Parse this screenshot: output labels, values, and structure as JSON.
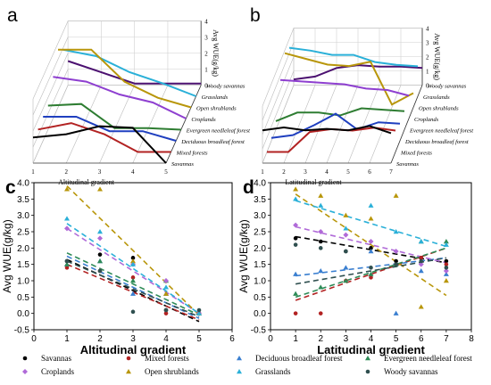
{
  "colors": {
    "Savannas": "#000000",
    "Mixed forests": "#b22222",
    "Deciduous broadleaf forest": "#1f3fbf",
    "Evergreen needleleaf forest": "#2e7d32",
    "Croplands": "#8e3fd0",
    "Open shrublands": "#b8960a",
    "Grasslands": "#2ab0d8",
    "Woody savannas": "#4b1070",
    "scatter_woody": "#2f4f4f",
    "scatter_crop": "#b06ad8",
    "scatter_dbf": "#3a7fd0",
    "scatter_enf": "#2e8b57"
  },
  "panels": {
    "a": "a",
    "b": "b",
    "c": "c",
    "d": "d"
  },
  "legend": {
    "row1": [
      "Savannas",
      "Mixed forests",
      "Deciduous broadleaf forest",
      "Evergreen needleleaf forest"
    ],
    "row2": [
      "Croplands",
      "Open shrublands",
      "Grasslands",
      "Woody savannas"
    ]
  },
  "chart_data": [
    {
      "id": "a",
      "type": "line",
      "note": "3D waterfall line chart",
      "xlabel": "Altitudinal gradient",
      "zlabel": "Avg WUE(g/kg)",
      "x_ticks": [
        "1",
        "2",
        "3",
        "4",
        "5"
      ],
      "z_ticks": [
        "0",
        "1",
        "2",
        "3",
        "4"
      ],
      "series_order": [
        "Savannas",
        "Mixed forests",
        "Deciduous broadleaf forest",
        "Evergreen needleleaf forest",
        "Croplands",
        "Open shrublands",
        "Grasslands",
        "Woody savannas"
      ],
      "x": [
        1,
        2,
        3,
        4,
        5
      ],
      "series": [
        {
          "name": "Savannas",
          "values": [
            1.6,
            1.8,
            2.3,
            2.2,
            0.0
          ]
        },
        {
          "name": "Mixed forests",
          "values": [
            1.4,
            1.8,
            1.1,
            0.0,
            0.0
          ]
        },
        {
          "name": "Deciduous broadleaf forest",
          "values": [
            1.5,
            1.5,
            0.6,
            0.6,
            0.0
          ]
        },
        {
          "name": "Evergreen needleleaf forest",
          "values": [
            1.5,
            1.6,
            0.1,
            0.1,
            0.0
          ]
        },
        {
          "name": "Croplands",
          "values": [
            2.6,
            2.3,
            1.5,
            1.0,
            0.0
          ]
        },
        {
          "name": "Open shrublands",
          "values": [
            3.6,
            3.6,
            1.6,
            0.6,
            0.0
          ]
        },
        {
          "name": "Grasslands",
          "values": [
            2.9,
            2.5,
            1.5,
            0.8,
            0.0
          ]
        },
        {
          "name": "Woody savannas",
          "values": [
            1.5,
            0.8,
            0.1,
            0.1,
            0.1
          ]
        }
      ]
    },
    {
      "id": "b",
      "type": "line",
      "note": "3D waterfall line chart",
      "xlabel": "Latitudinal gradient",
      "zlabel": "Avg WUE(g/kg)",
      "x_ticks": [
        "1",
        "2",
        "3",
        "4",
        "5",
        "6",
        "7"
      ],
      "z_ticks": [
        "0",
        "1",
        "2",
        "3",
        "4"
      ],
      "series_order": [
        "Savannas",
        "Mixed forests",
        "Deciduous broadleaf forest",
        "Evergreen needleleaf forest",
        "Croplands",
        "Open shrublands",
        "Grasslands",
        "Woody savannas"
      ],
      "x": [
        1,
        2,
        3,
        4,
        5,
        6,
        7
      ],
      "series": [
        {
          "name": "Savannas",
          "values": [
            2.3,
            2.5,
            2.3,
            2.4,
            2.3,
            2.6,
            2.1
          ]
        },
        {
          "name": "Mixed forests",
          "values": [
            0.0,
            0.0,
            1.4,
            1.6,
            1.5,
            1.7,
            1.5
          ]
        },
        {
          "name": "Deciduous broadleaf forest",
          "values": [
            0.2,
            0.4,
            1.1,
            1.9,
            0.8,
            1.3,
            1.2
          ]
        },
        {
          "name": "Evergreen needleleaf forest",
          "values": [
            0.6,
            1.2,
            1.2,
            1.0,
            1.5,
            1.4,
            1.3
          ]
        },
        {
          "name": "Croplands",
          "values": [
            2.7,
            2.6,
            2.5,
            2.4,
            2.1,
            2.0,
            1.6
          ]
        },
        {
          "name": "Open shrublands",
          "values": [
            3.8,
            3.4,
            3.0,
            2.9,
            3.2,
            0.2,
            1.0
          ]
        },
        {
          "name": "Grasslands",
          "values": [
            3.4,
            3.2,
            2.9,
            2.9,
            2.4,
            2.2,
            2.1
          ]
        },
        {
          "name": "Woody savannas",
          "values": [
            0.4,
            0.6,
            1.2,
            1.4,
            1.3,
            1.3,
            1.2
          ]
        }
      ]
    },
    {
      "id": "c",
      "type": "scatter",
      "xlabel": "Altitudinal gradient",
      "ylabel": "Avg WUE(g/kg)",
      "xlim": [
        0,
        6
      ],
      "ylim": [
        -0.5,
        4.0
      ],
      "x_ticks": [
        "0",
        "1",
        "2",
        "3",
        "4",
        "5",
        "6"
      ],
      "y_ticks": [
        "-0.5",
        "0.0",
        "0.5",
        "1.0",
        "1.5",
        "2.0",
        "2.5",
        "3.0",
        "3.5",
        "4.0"
      ],
      "series": [
        {
          "name": "Savannas",
          "marker": "circle",
          "points": [
            [
              1,
              1.6
            ],
            [
              2,
              1.8
            ],
            [
              3,
              1.7
            ],
            [
              4,
              0.1
            ],
            [
              5,
              0.0
            ]
          ],
          "trend": [
            [
              1,
              1.65
            ],
            [
              5,
              -0.25
            ]
          ]
        },
        {
          "name": "Mixed forests",
          "marker": "circle",
          "points": [
            [
              1,
              1.4
            ],
            [
              2,
              1.3
            ],
            [
              3,
              1.1
            ],
            [
              4,
              0.0
            ],
            [
              5,
              0.0
            ]
          ],
          "trend": [
            [
              1,
              1.5
            ],
            [
              5,
              -0.2
            ]
          ]
        },
        {
          "name": "Deciduous broadleaf forest",
          "marker": "triangle",
          "points": [
            [
              1,
              1.5
            ],
            [
              2,
              1.6
            ],
            [
              3,
              0.6
            ],
            [
              4,
              0.6
            ],
            [
              5,
              0.0
            ]
          ],
          "trend": [
            [
              1,
              1.75
            ],
            [
              5,
              -0.15
            ]
          ]
        },
        {
          "name": "Evergreen needleleaf forest",
          "marker": "triangle",
          "points": [
            [
              1,
              1.5
            ],
            [
              2,
              1.6
            ],
            [
              3,
              1.0
            ],
            [
              4,
              1.0
            ],
            [
              5,
              0.0
            ]
          ],
          "trend": [
            [
              1,
              1.85
            ],
            [
              5,
              -0.05
            ]
          ]
        },
        {
          "name": "Croplands",
          "marker": "diamond",
          "points": [
            [
              1,
              2.6
            ],
            [
              2,
              2.3
            ],
            [
              3,
              1.5
            ],
            [
              4,
              1.0
            ],
            [
              5,
              0.0
            ]
          ],
          "trend": [
            [
              1,
              2.6
            ],
            [
              5,
              0.0
            ]
          ]
        },
        {
          "name": "Open shrublands",
          "marker": "triangle",
          "points": [
            [
              1,
              3.8
            ],
            [
              2,
              3.8
            ],
            [
              3,
              1.6
            ],
            [
              4,
              0.6
            ],
            [
              5,
              0.0
            ]
          ],
          "trend": [
            [
              1,
              3.9
            ],
            [
              5,
              -0.05
            ]
          ]
        },
        {
          "name": "Grasslands",
          "marker": "triangle",
          "points": [
            [
              1,
              2.9
            ],
            [
              2,
              2.5
            ],
            [
              3,
              1.5
            ],
            [
              4,
              0.8
            ],
            [
              5,
              0.0
            ]
          ],
          "trend": [
            [
              1,
              2.75
            ],
            [
              5,
              0.0
            ]
          ]
        },
        {
          "name": "Woody savannas",
          "marker": "circle",
          "points": [
            [
              1,
              1.6
            ],
            [
              2,
              1.3
            ],
            [
              3,
              0.05
            ],
            [
              4,
              0.1
            ],
            [
              5,
              0.1
            ]
          ],
          "trend": [
            [
              1,
              1.6
            ],
            [
              5,
              -0.1
            ]
          ]
        }
      ]
    },
    {
      "id": "d",
      "type": "scatter",
      "xlabel": "Latitudinal gradient",
      "ylabel": "Avg WUE(g/kg)",
      "xlim": [
        0,
        8
      ],
      "ylim": [
        -0.5,
        4.0
      ],
      "x_ticks": [
        "0",
        "1",
        "2",
        "3",
        "4",
        "5",
        "6",
        "7",
        "8"
      ],
      "y_ticks": [
        "-0.5",
        "0.0",
        "0.5",
        "1.0",
        "1.5",
        "2.0",
        "2.5",
        "3.0",
        "3.5",
        "4.0"
      ],
      "series": [
        {
          "name": "Savannas",
          "marker": "circle",
          "points": [
            [
              1,
              2.3
            ],
            [
              2,
              2.2
            ],
            [
              3,
              1.9
            ],
            [
              4,
              2.0
            ],
            [
              5,
              1.6
            ],
            [
              6,
              1.7
            ],
            [
              7,
              1.6
            ]
          ],
          "trend": [
            [
              1,
              2.35
            ],
            [
              7,
              1.55
            ]
          ]
        },
        {
          "name": "Mixed forests",
          "marker": "circle",
          "points": [
            [
              1,
              0.0
            ],
            [
              2,
              0.0
            ],
            [
              3,
              1.0
            ],
            [
              4,
              1.1
            ],
            [
              5,
              1.5
            ],
            [
              6,
              1.7
            ],
            [
              7,
              1.5
            ]
          ],
          "trend": [
            [
              1,
              0.4
            ],
            [
              7,
              2.0
            ]
          ]
        },
        {
          "name": "Deciduous broadleaf forest",
          "marker": "triangle",
          "points": [
            [
              1,
              1.2
            ],
            [
              2,
              1.3
            ],
            [
              3,
              1.4
            ],
            [
              4,
              1.9
            ],
            [
              5,
              0.0
            ],
            [
              6,
              1.3
            ],
            [
              7,
              1.2
            ]
          ],
          "trend": [
            [
              1,
              1.15
            ],
            [
              7,
              1.7
            ]
          ]
        },
        {
          "name": "Evergreen needleleaf forest",
          "marker": "triangle",
          "points": [
            [
              1,
              0.6
            ],
            [
              2,
              0.8
            ],
            [
              3,
              1.0
            ],
            [
              4,
              1.2
            ],
            [
              5,
              1.5
            ],
            [
              6,
              2.2
            ],
            [
              7,
              2.2
            ]
          ],
          "trend": [
            [
              1,
              0.5
            ],
            [
              7,
              2.0
            ]
          ]
        },
        {
          "name": "Croplands",
          "marker": "diamond",
          "points": [
            [
              1,
              2.7
            ],
            [
              2,
              2.5
            ],
            [
              3,
              2.4
            ],
            [
              4,
              2.2
            ],
            [
              5,
              1.9
            ],
            [
              6,
              1.5
            ],
            [
              7,
              1.3
            ]
          ],
          "trend": [
            [
              1,
              2.65
            ],
            [
              7,
              1.55
            ]
          ]
        },
        {
          "name": "Open shrublands",
          "marker": "triangle",
          "points": [
            [
              1,
              3.8
            ],
            [
              2,
              3.6
            ],
            [
              3,
              3.0
            ],
            [
              4,
              2.9
            ],
            [
              5,
              3.6
            ],
            [
              6,
              0.2
            ],
            [
              7,
              1.0
            ]
          ],
          "trend": [
            [
              1,
              3.65
            ],
            [
              7,
              0.55
            ]
          ]
        },
        {
          "name": "Grasslands",
          "marker": "triangle",
          "points": [
            [
              1,
              3.5
            ],
            [
              2,
              3.3
            ],
            [
              3,
              2.6
            ],
            [
              4,
              3.3
            ],
            [
              5,
              2.5
            ],
            [
              6,
              2.2
            ],
            [
              7,
              2.1
            ]
          ],
          "trend": [
            [
              1,
              3.45
            ],
            [
              7,
              2.05
            ]
          ]
        },
        {
          "name": "Woody savannas",
          "marker": "circle",
          "points": [
            [
              1,
              2.1
            ],
            [
              2,
              2.0
            ],
            [
              3,
              1.9
            ],
            [
              4,
              1.4
            ],
            [
              5,
              1.5
            ],
            [
              6,
              1.6
            ],
            [
              7,
              1.4
            ]
          ],
          "trend": [
            [
              1,
              0.9
            ],
            [
              7,
              1.7
            ]
          ]
        }
      ]
    }
  ]
}
